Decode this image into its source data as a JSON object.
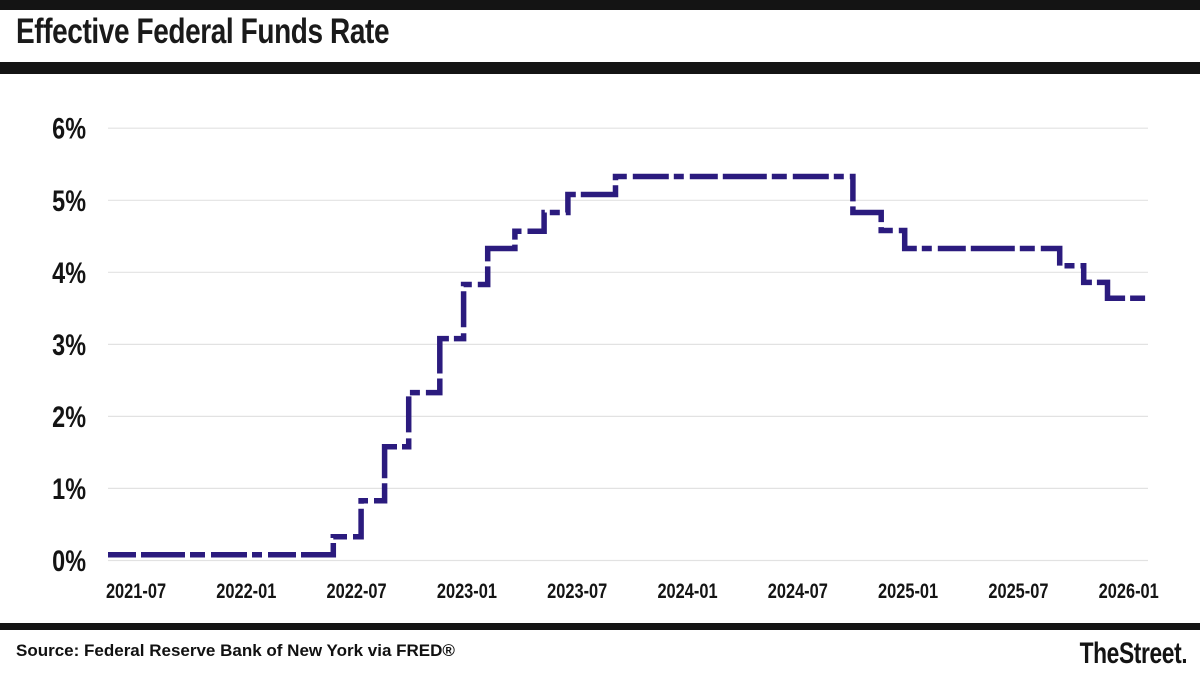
{
  "header": {
    "title": "Effective Federal Funds Rate"
  },
  "footer": {
    "source": "Source: Federal Reserve Bank of New York via FRED®",
    "brand": "TheStreet"
  },
  "chart_data": {
    "type": "line",
    "subtype": "step",
    "title": "Effective Federal Funds Rate",
    "xlabel": "",
    "ylabel": "",
    "x_tick_labels": [
      "2021-07",
      "2022-01",
      "2022-07",
      "2023-01",
      "2023-07",
      "2024-01",
      "2024-07",
      "2025-01",
      "2025-07",
      "2026-01"
    ],
    "y_tick_labels": [
      "0%",
      "1%",
      "2%",
      "3%",
      "4%",
      "5%",
      "6%"
    ],
    "ylim": [
      0,
      6
    ],
    "x_range": [
      "2021-06",
      "2026-02"
    ],
    "grid": "horizontal",
    "legend": "none",
    "line_color": "#2b1b7e",
    "grid_color": "#e2e2e2",
    "text_color": "#141414",
    "series": [
      {
        "name": "Effective Federal Funds Rate (%)",
        "points": [
          [
            "2021-02-15",
            0.08
          ],
          [
            "2022-03-17",
            0.33
          ],
          [
            "2022-05-05",
            0.83
          ],
          [
            "2022-06-16",
            1.58
          ],
          [
            "2022-07-28",
            2.33
          ],
          [
            "2022-09-22",
            3.08
          ],
          [
            "2022-11-03",
            3.83
          ],
          [
            "2022-12-15",
            4.33
          ],
          [
            "2023-02-02",
            4.57
          ],
          [
            "2023-03-23",
            4.83
          ],
          [
            "2023-05-04",
            5.08
          ],
          [
            "2023-07-27",
            5.33
          ],
          [
            "2024-09-19",
            4.83
          ],
          [
            "2024-11-08",
            4.58
          ],
          [
            "2024-12-19",
            4.33
          ],
          [
            "2025-09-18",
            4.09
          ],
          [
            "2025-10-30",
            3.86
          ],
          [
            "2025-12-11",
            3.64
          ],
          [
            "2026-02-20",
            3.64
          ]
        ]
      }
    ]
  }
}
